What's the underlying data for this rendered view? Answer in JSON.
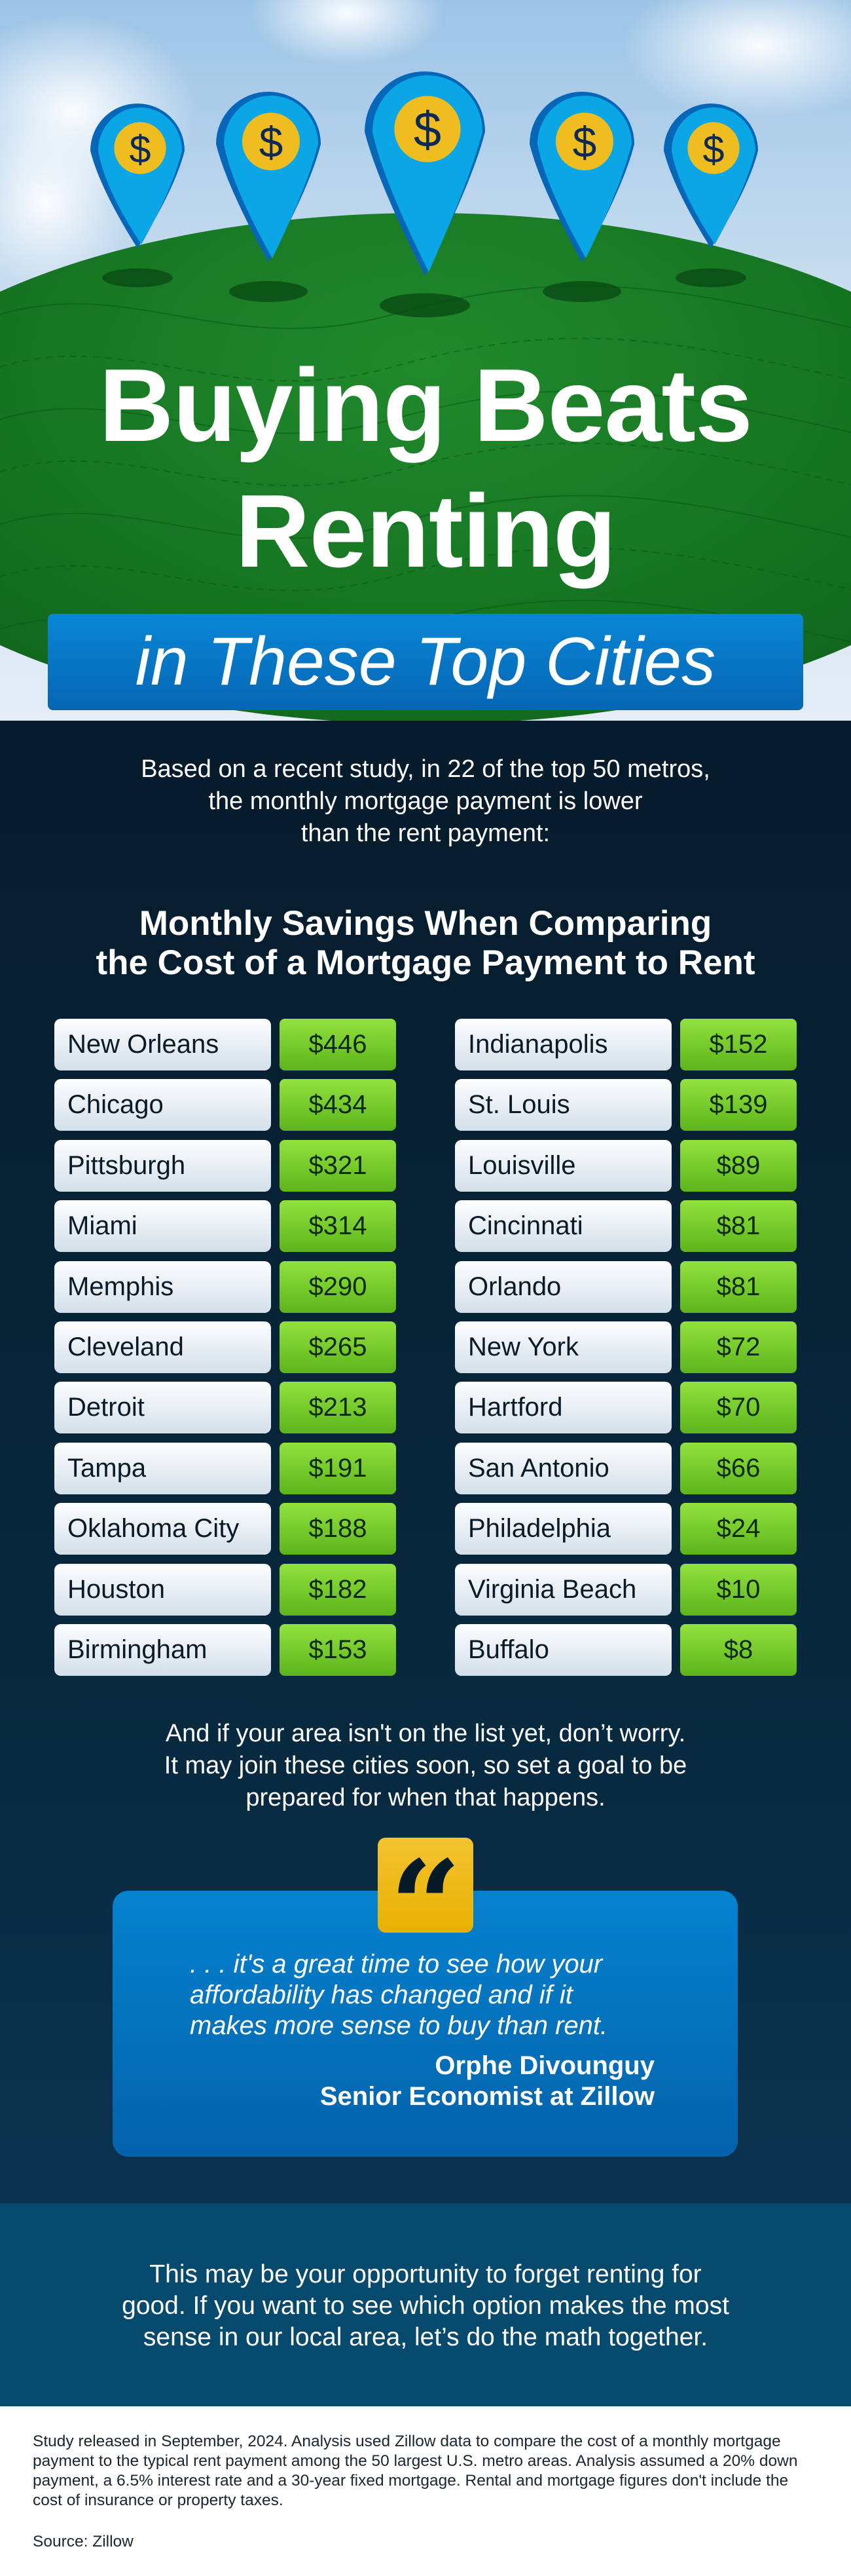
{
  "hero": {
    "title_line1": "Buying Beats",
    "title_line2": "Renting",
    "banner": "in These Top Cities",
    "pin_icon": "dollar-map-pin-icon",
    "pin_symbol": "$"
  },
  "intro": {
    "lines": [
      "Based on a recent study, in 22 of the top 50 metros,",
      "the monthly mortgage payment is lower",
      "than the rent payment:"
    ]
  },
  "heading": {
    "lines": [
      "Monthly Savings When Comparing",
      "the Cost of a Mortgage Payment to Rent"
    ]
  },
  "savings": {
    "left": [
      {
        "city": "New Orleans",
        "amount": "$446"
      },
      {
        "city": "Chicago",
        "amount": "$434"
      },
      {
        "city": "Pittsburgh",
        "amount": "$321"
      },
      {
        "city": "Miami",
        "amount": "$314"
      },
      {
        "city": "Memphis",
        "amount": "$290"
      },
      {
        "city": "Cleveland",
        "amount": "$265"
      },
      {
        "city": "Detroit",
        "amount": "$213"
      },
      {
        "city": "Tampa",
        "amount": "$191"
      },
      {
        "city": "Oklahoma City",
        "amount": "$188"
      },
      {
        "city": "Houston",
        "amount": "$182"
      },
      {
        "city": "Birmingham",
        "amount": "$153"
      }
    ],
    "right": [
      {
        "city": "Indianapolis",
        "amount": "$152"
      },
      {
        "city": "St. Louis",
        "amount": "$139"
      },
      {
        "city": "Louisville",
        "amount": "$89"
      },
      {
        "city": "Cincinnati",
        "amount": "$81"
      },
      {
        "city": "Orlando",
        "amount": "$81"
      },
      {
        "city": "New York",
        "amount": "$72"
      },
      {
        "city": "Hartford",
        "amount": "$70"
      },
      {
        "city": "San Antonio",
        "amount": "$66"
      },
      {
        "city": "Philadelphia",
        "amount": "$24"
      },
      {
        "city": "Virginia Beach",
        "amount": "$10"
      },
      {
        "city": "Buffalo",
        "amount": "$8"
      }
    ]
  },
  "after": {
    "lines": [
      "And if your area isn't on the list yet, don’t worry.",
      "It may join these cities soon, so set a goal to be",
      "prepared for when that happens."
    ]
  },
  "quote": {
    "mark": "“",
    "lines": [
      ". . . it's a great time to see how your",
      "affordability has changed and if it",
      "makes more sense to buy than rent."
    ],
    "author": "Orphe Divounguy",
    "role": "Senior Economist at Zillow"
  },
  "cta": {
    "lines": [
      "This may be your opportunity to forget renting for",
      "good. If you want to see which option makes the most",
      "sense in our local area, let’s do the math together."
    ]
  },
  "footer": {
    "note": "Study released in September, 2024. Analysis used Zillow data to compare the cost of a monthly mortgage payment to the typical rent payment among the 50 largest U.S. metro areas. Analysis assumed a 20% down payment, a 6.5% interest rate and a 30-year fixed mortgage. Rental and mortgage figures don't include the cost of insurance or property taxes.",
    "source": "Source: Zillow"
  },
  "colors": {
    "background": "#061c2c",
    "accent_blue": "#0582cf",
    "value_green": "#7acb2c",
    "quote_yellow": "#f0bd20",
    "band": "#064a6e",
    "hill_green": "#1a7f26"
  }
}
